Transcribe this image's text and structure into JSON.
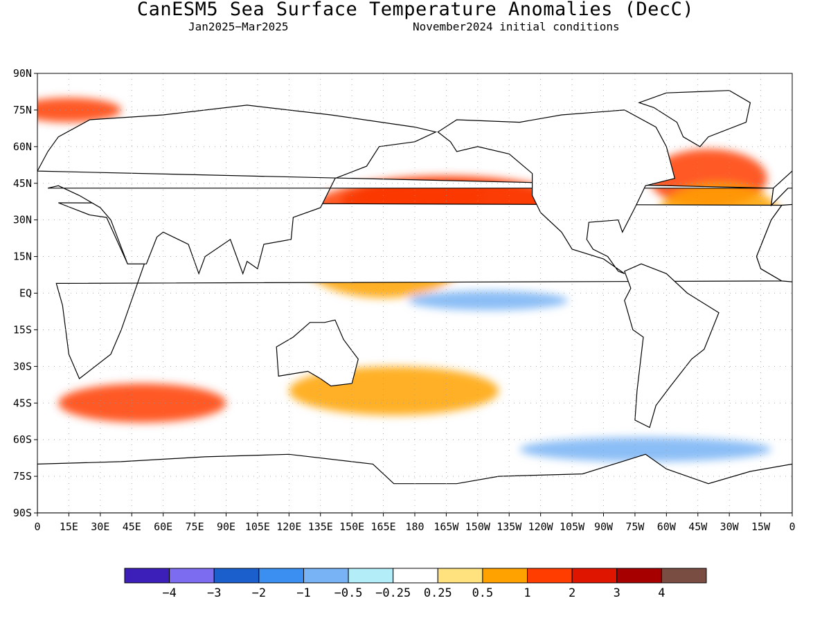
{
  "header": {
    "title": "CanESM5 Sea Surface Temperature Anomalies (DecC)",
    "period": "Jan2025−Mar2025",
    "init": "November2024 initial conditions"
  },
  "chart_data": {
    "type": "heatmap",
    "title": "CanESM5 Sea Surface Temperature Anomalies (DecC)",
    "x_ticks": [
      "0",
      "15E",
      "30E",
      "45E",
      "60E",
      "75E",
      "90E",
      "105E",
      "120E",
      "135E",
      "150E",
      "165E",
      "180",
      "165W",
      "150W",
      "135W",
      "120W",
      "105W",
      "90W",
      "75W",
      "60W",
      "45W",
      "30W",
      "15W",
      "0"
    ],
    "y_ticks": [
      "90N",
      "75N",
      "60N",
      "45N",
      "30N",
      "15N",
      "EQ",
      "15S",
      "30S",
      "45S",
      "60S",
      "75S",
      "90S"
    ],
    "xlim": [
      0,
      360
    ],
    "ylim": [
      -90,
      90
    ],
    "grid": true,
    "legend": "bottom",
    "colorbar": {
      "colors": [
        "#3c1fb8",
        "#7b6cf0",
        "#1b5fcc",
        "#3a8ff0",
        "#77b3f5",
        "#b3edf7",
        "#ffffff",
        "#ffe27d",
        "#ffa200",
        "#ff3d00",
        "#e01500",
        "#a60000",
        "#7a4d42"
      ],
      "labels": [
        "−4",
        "−3",
        "−2",
        "−1",
        "−0.5",
        "−0.25",
        "0.25",
        "0.5",
        "1",
        "2",
        "3",
        "4"
      ]
    },
    "anomalies": [
      {
        "lon": 195,
        "lat": 38,
        "rx": 50,
        "ry": 9,
        "level": 2.5
      },
      {
        "lon": 183,
        "lat": 40,
        "rx": 30,
        "ry": 6,
        "level": 3
      },
      {
        "lon": 195,
        "lat": 34,
        "rx": 65,
        "ry": 14,
        "level": 1.5
      },
      {
        "lon": 165,
        "lat": 15,
        "rx": 40,
        "ry": 17,
        "level": 0.75
      },
      {
        "lon": 215,
        "lat": -3,
        "rx": 38,
        "ry": 4,
        "level": -0.5
      },
      {
        "lon": 320,
        "lat": 47,
        "rx": 28,
        "ry": 12,
        "level": 2
      },
      {
        "lon": 325,
        "lat": 30,
        "rx": 30,
        "ry": 15,
        "level": 0.75
      },
      {
        "lon": 290,
        "lat": -64,
        "rx": 60,
        "ry": 5,
        "level": -0.75
      },
      {
        "lon": 50,
        "lat": -45,
        "rx": 40,
        "ry": 8,
        "level": 1.5
      },
      {
        "lon": 170,
        "lat": -40,
        "rx": 50,
        "ry": 10,
        "level": 0.75
      },
      {
        "lon": 15,
        "lat": 75,
        "rx": 25,
        "ry": 5,
        "level": 2
      }
    ]
  }
}
